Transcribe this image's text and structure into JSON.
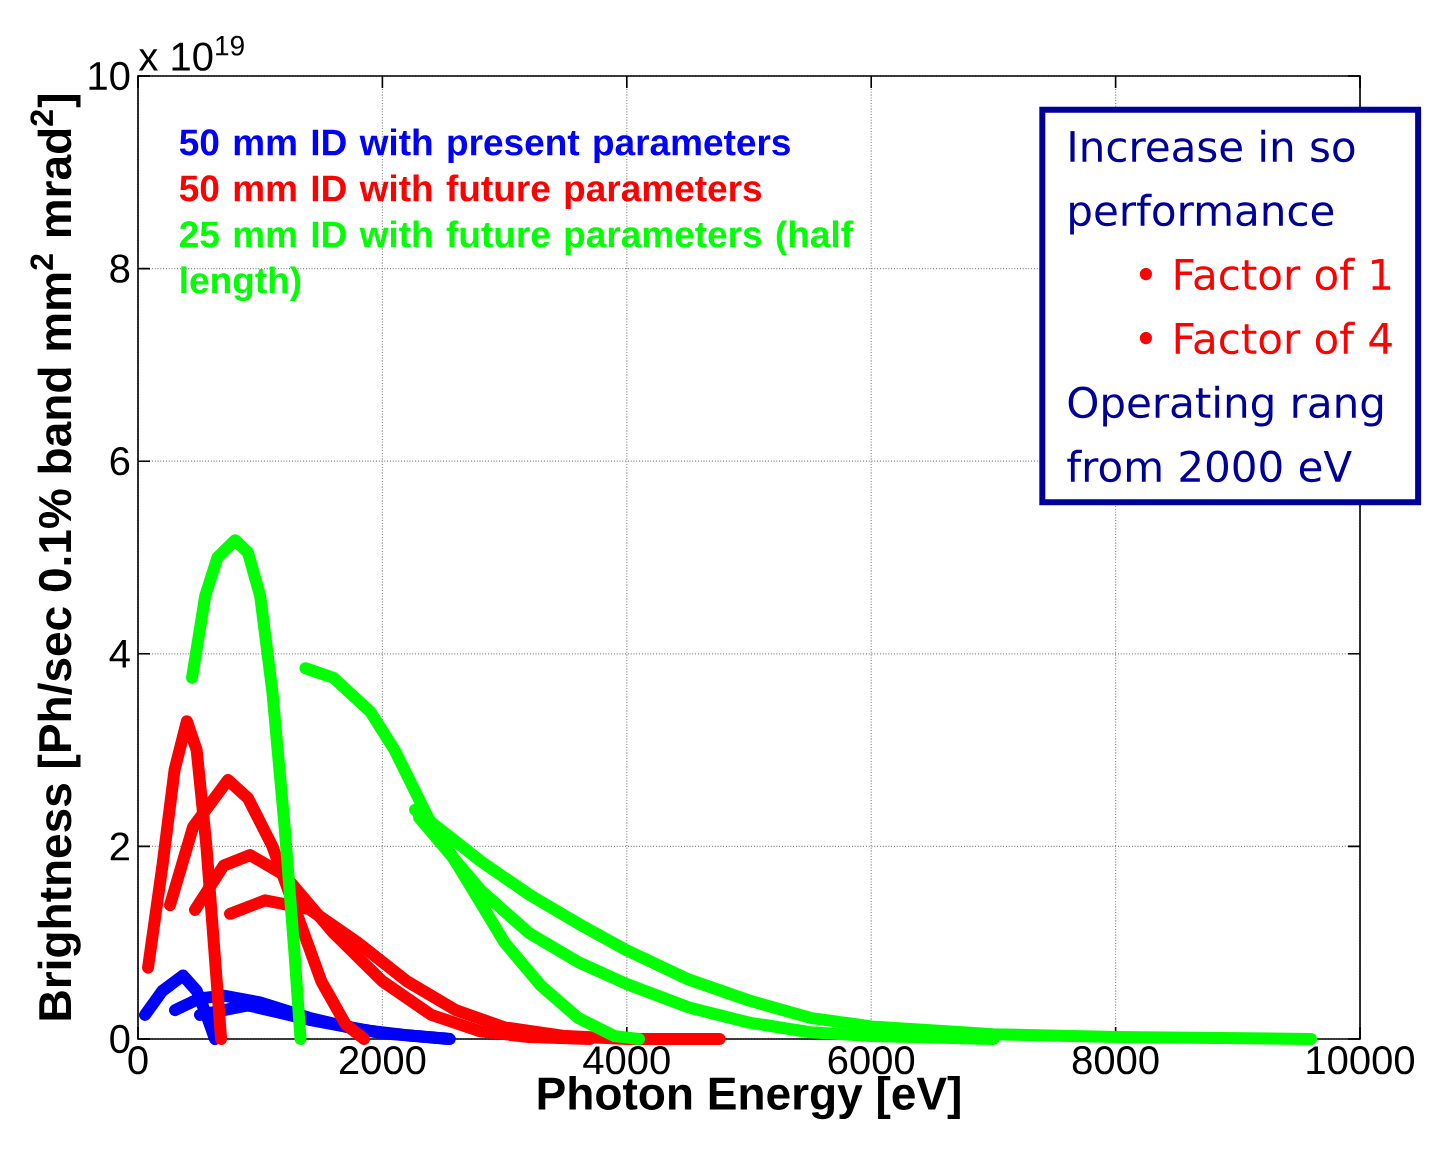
{
  "chart_data": {
    "type": "line",
    "xlabel": "Photon Energy [eV]",
    "ylabel": "Brightness [Ph/sec 0.1% band mm$^{2}$ mrad$^{2}$]",
    "xlim": [
      0,
      10000
    ],
    "ylim": [
      0,
      10
    ],
    "xticks": [
      0,
      2000,
      4000,
      6000,
      8000,
      10000
    ],
    "yticks": [
      0,
      2,
      4,
      6,
      8,
      10
    ],
    "grid": true,
    "legend": "top left",
    "annotations": [
      "x 10$^{19}$",
      "Increase in so",
      "performance",
      "• Factor of 1",
      "• Factor of 4",
      "Operating rang",
      "from 2000 eV"
    ],
    "series": [
      {
        "name": "50 mm ID with present parameters",
        "color": "#0000ff",
        "x": [
          57,
          200,
          368,
          480,
          560,
          630
        ],
        "values": [
          0.25,
          0.5,
          0.66,
          0.5,
          0.25,
          0.0
        ]
      },
      {
        "color": "#0000ff",
        "x": [
          303,
          500,
          700,
          1000,
          1400,
          1800,
          2200,
          2550
        ],
        "values": [
          0.3,
          0.42,
          0.45,
          0.38,
          0.22,
          0.1,
          0.04,
          0.0
        ]
      },
      {
        "color": "#0000ff",
        "x": [
          507,
          900,
          1400,
          2000,
          2550
        ],
        "values": [
          0.25,
          0.35,
          0.2,
          0.06,
          0.0
        ]
      },
      {
        "name": "50 mm ID with future parameters",
        "color": "#ff0000",
        "x": [
          82,
          200,
          300,
          400,
          480,
          560,
          620,
          680
        ],
        "values": [
          0.74,
          1.8,
          2.8,
          3.3,
          3.0,
          2.0,
          1.0,
          0.0
        ]
      },
      {
        "color": "#ff0000",
        "x": [
          262,
          450,
          736,
          900,
          1100,
          1300,
          1500,
          1700,
          1850
        ],
        "values": [
          1.39,
          2.2,
          2.69,
          2.5,
          2.0,
          1.3,
          0.6,
          0.15,
          0.0
        ]
      },
      {
        "color": "#ff0000",
        "x": [
          466,
          700,
          917,
          1200,
          1600,
          2000,
          2400,
          2800,
          3200,
          3700
        ],
        "values": [
          1.34,
          1.8,
          1.91,
          1.7,
          1.1,
          0.6,
          0.25,
          0.08,
          0.02,
          0.0
        ]
      },
      {
        "color": "#ff0000",
        "x": [
          753,
          1040,
          1400,
          1800,
          2200,
          2600,
          3000,
          3500,
          4000,
          4760
        ],
        "values": [
          1.3,
          1.44,
          1.35,
          1.0,
          0.6,
          0.3,
          0.12,
          0.03,
          0.0,
          0.0
        ]
      },
      {
        "name": "25 mm ID with future parameters (half length)",
        "color": "#00ff00",
        "x": [
          442,
          550,
          650,
          794,
          900,
          1000,
          1100,
          1200,
          1280,
          1330
        ],
        "values": [
          3.75,
          4.6,
          5.0,
          5.18,
          5.05,
          4.6,
          3.6,
          2.2,
          0.9,
          0.0
        ]
      },
      {
        "color": "#00ff00",
        "x": [
          1370,
          1600,
          1900,
          2100,
          2373,
          2643,
          3000,
          3300,
          3600,
          3900,
          4100
        ],
        "values": [
          3.85,
          3.75,
          3.4,
          3.0,
          2.3,
          1.75,
          1.0,
          0.55,
          0.22,
          0.03,
          0.0
        ]
      },
      {
        "color": "#00ff00",
        "x": [
          2267,
          2800,
          3200,
          3600,
          4000,
          4500,
          5000,
          5500,
          6000,
          7000,
          8000,
          9600
        ],
        "values": [
          2.38,
          1.85,
          1.5,
          1.2,
          0.92,
          0.62,
          0.4,
          0.22,
          0.13,
          0.05,
          0.02,
          0.0
        ]
      },
      {
        "color": "#00ff00",
        "x": [
          2300,
          2800,
          3200,
          3600,
          4000,
          4500,
          5000,
          5500,
          6000,
          7000
        ],
        "values": [
          2.3,
          1.55,
          1.1,
          0.8,
          0.57,
          0.33,
          0.17,
          0.07,
          0.03,
          0.0
        ]
      }
    ]
  }
}
